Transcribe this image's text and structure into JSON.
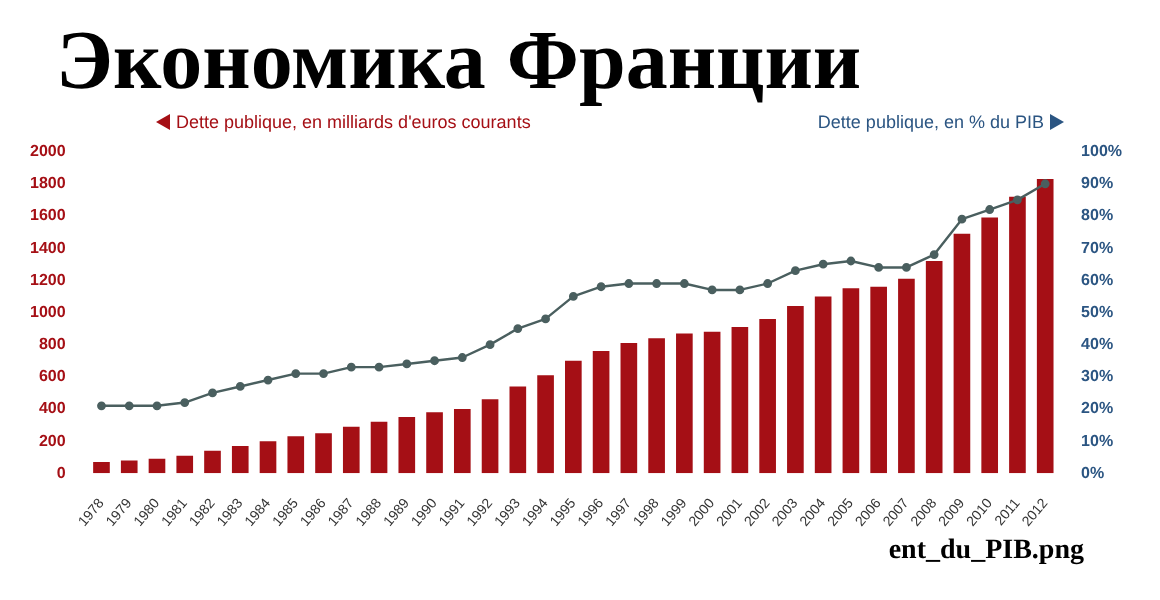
{
  "chart_data": {
    "type": "bar",
    "title": "Экономика Франции",
    "ylabel": "Dette publique, en milliards d'euros courants",
    "y2label": "Dette publique, en % du PIB",
    "annotations": [
      "ent_du_PIB.png"
    ],
    "categories": [
      "1978",
      "1979",
      "1980",
      "1981",
      "1982",
      "1983",
      "1984",
      "1985",
      "1986",
      "1987",
      "1988",
      "1989",
      "1990",
      "1991",
      "1992",
      "1993",
      "1994",
      "1995",
      "1996",
      "1997",
      "1998",
      "1999",
      "2000",
      "2001",
      "2002",
      "2003",
      "2004",
      "2005",
      "2006",
      "2007",
      "2008",
      "2009",
      "2010",
      "2011",
      "2012"
    ],
    "series": [
      {
        "axis": "y",
        "color": "#a50f15",
        "values": [
          70,
          80,
          90,
          110,
          140,
          170,
          200,
          230,
          250,
          290,
          320,
          350,
          380,
          400,
          460,
          540,
          610,
          700,
          760,
          810,
          840,
          870,
          880,
          910,
          960,
          1040,
          1100,
          1150,
          1160,
          1210,
          1320,
          1490,
          1590,
          1720,
          1830
        ]
      },
      {
        "type": "line",
        "axis": "y2",
        "color": "#4a5f5f",
        "marker": "circle",
        "values": [
          21,
          21,
          21,
          22,
          25,
          27,
          29,
          31,
          31,
          33,
          33,
          34,
          35,
          36,
          40,
          45,
          48,
          55,
          58,
          59,
          59,
          59,
          57,
          57,
          59,
          63,
          65,
          66,
          64,
          64,
          68,
          79,
          82,
          85,
          90
        ]
      }
    ],
    "ylim": [
      0,
      2000
    ],
    "yticks": [
      0,
      200,
      400,
      600,
      800,
      1000,
      1200,
      1400,
      1600,
      1800,
      2000
    ],
    "y2lim": [
      0,
      100
    ],
    "y2ticks": [
      {
        "value": 0,
        "label": "0%"
      },
      {
        "value": 10,
        "label": "10%"
      },
      {
        "value": 20,
        "label": "20%"
      },
      {
        "value": 30,
        "label": "30%"
      },
      {
        "value": 40,
        "label": "40%"
      },
      {
        "value": 50,
        "label": "50%"
      },
      {
        "value": 60,
        "label": "60%"
      },
      {
        "value": 70,
        "label": "70%"
      },
      {
        "value": 80,
        "label": "80%"
      },
      {
        "value": 90,
        "label": "90%"
      },
      {
        "value": 100,
        "label": "100%"
      }
    ],
    "grid": false,
    "legend": false
  }
}
